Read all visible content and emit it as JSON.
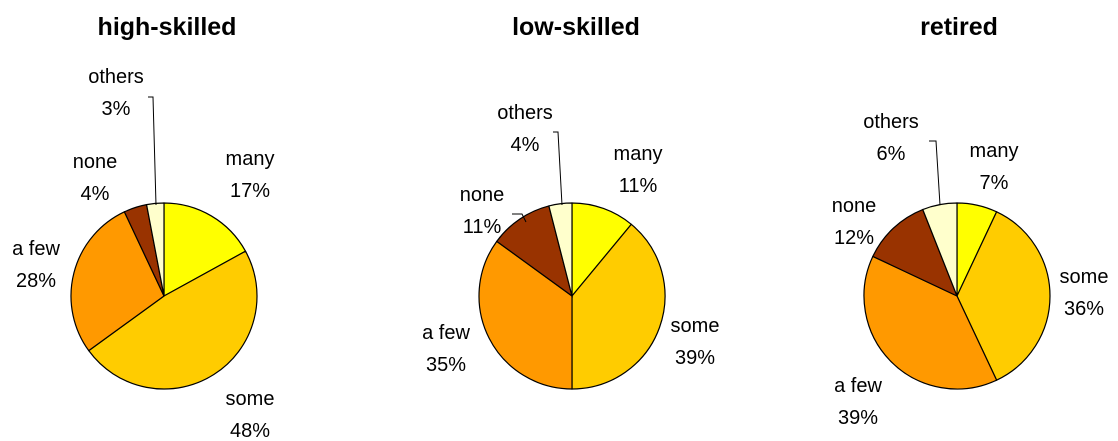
{
  "chart_data": [
    {
      "type": "pie",
      "title": "high-skilled",
      "slices": [
        {
          "label": "many",
          "value": 17,
          "pct_text": "17%",
          "color": "#FFFF00"
        },
        {
          "label": "some",
          "value": 48,
          "pct_text": "48%",
          "color": "#FFCC00"
        },
        {
          "label": "a few",
          "value": 28,
          "pct_text": "28%",
          "color": "#FF9900"
        },
        {
          "label": "none",
          "value": 4,
          "pct_text": "4%",
          "color": "#993300"
        },
        {
          "label": "others",
          "value": 3,
          "pct_text": "3%",
          "color": "#FFFFCC"
        }
      ]
    },
    {
      "type": "pie",
      "title": "low-skilled",
      "slices": [
        {
          "label": "many",
          "value": 11,
          "pct_text": "11%",
          "color": "#FFFF00"
        },
        {
          "label": "some",
          "value": 39,
          "pct_text": "39%",
          "color": "#FFCC00"
        },
        {
          "label": "a few",
          "value": 35,
          "pct_text": "35%",
          "color": "#FF9900"
        },
        {
          "label": "none",
          "value": 11,
          "pct_text": "11%",
          "color": "#993300"
        },
        {
          "label": "others",
          "value": 4,
          "pct_text": "4%",
          "color": "#FFFFCC"
        }
      ]
    },
    {
      "type": "pie",
      "title": "retired",
      "slices": [
        {
          "label": "many",
          "value": 7,
          "pct_text": "7%",
          "color": "#FFFF00"
        },
        {
          "label": "some",
          "value": 36,
          "pct_text": "36%",
          "color": "#FFCC00"
        },
        {
          "label": "a few",
          "value": 39,
          "pct_text": "39%",
          "color": "#FF9900"
        },
        {
          "label": "none",
          "value": 12,
          "pct_text": "12%",
          "color": "#993300"
        },
        {
          "label": "others",
          "value": 6,
          "pct_text": "6%",
          "color": "#FFFFCC"
        }
      ]
    }
  ]
}
